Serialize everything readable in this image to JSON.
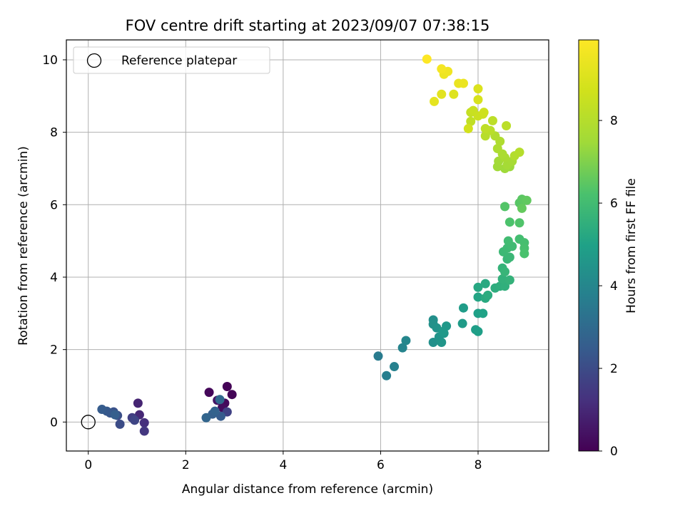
{
  "chart_data": {
    "type": "scatter",
    "title": "FOV centre drift starting at 2023/09/07 07:38:15",
    "xlabel": "Angular distance from reference (arcmin)",
    "ylabel": "Rotation from reference (arcmin)",
    "xlim": [
      -0.45,
      9.45
    ],
    "ylim": [
      -0.8,
      10.55
    ],
    "xticks": [
      "0",
      "2",
      "4",
      "6",
      "8"
    ],
    "yticks": [
      "0",
      "2",
      "4",
      "6",
      "8",
      "10"
    ],
    "grid": true,
    "legend": {
      "placement": "upper-left",
      "entries": [
        "Reference platepar"
      ]
    },
    "colorbar": {
      "label": "Hours from first FF file",
      "min": 0,
      "max": 9.95,
      "ticks": [
        "0",
        "2",
        "4",
        "6",
        "8"
      ],
      "colormap": "viridis"
    },
    "reference": {
      "x": 0,
      "y": 0
    },
    "points": [
      [
        2.85,
        0.98,
        0.05
      ],
      [
        2.95,
        0.76,
        0.1
      ],
      [
        2.48,
        0.82,
        0.15
      ],
      [
        2.8,
        0.52,
        0.2
      ],
      [
        2.75,
        0.4,
        0.3
      ],
      [
        2.65,
        0.6,
        0.5
      ],
      [
        2.85,
        0.28,
        1.7
      ],
      [
        2.72,
        0.16,
        2.5
      ],
      [
        2.55,
        0.22,
        2.6
      ],
      [
        2.6,
        0.3,
        2.7
      ],
      [
        2.42,
        0.12,
        2.8
      ],
      [
        2.7,
        0.62,
        2.9
      ],
      [
        1.02,
        0.52,
        0.9
      ],
      [
        1.05,
        0.2,
        1.0
      ],
      [
        1.15,
        -0.02,
        1.2
      ],
      [
        1.15,
        -0.25,
        1.4
      ],
      [
        0.9,
        0.12,
        1.6
      ],
      [
        0.95,
        0.05,
        1.8
      ],
      [
        0.65,
        -0.06,
        2.0
      ],
      [
        0.6,
        0.18,
        2.1
      ],
      [
        0.52,
        0.28,
        2.2
      ],
      [
        0.45,
        0.25,
        2.3
      ],
      [
        0.38,
        0.3,
        2.4
      ],
      [
        0.28,
        0.35,
        2.5
      ],
      [
        0.55,
        0.2,
        2.6
      ],
      [
        5.95,
        1.82,
        3.6
      ],
      [
        6.12,
        1.28,
        3.7
      ],
      [
        6.28,
        1.53,
        3.8
      ],
      [
        6.45,
        2.05,
        3.9
      ],
      [
        6.52,
        2.25,
        4.0
      ],
      [
        7.08,
        2.82,
        4.3
      ],
      [
        7.08,
        2.2,
        4.35
      ],
      [
        7.08,
        2.7,
        4.4
      ],
      [
        7.15,
        2.6,
        4.45
      ],
      [
        7.2,
        2.35,
        4.5
      ],
      [
        7.25,
        2.2,
        4.55
      ],
      [
        7.3,
        2.45,
        4.6
      ],
      [
        7.35,
        2.65,
        4.65
      ],
      [
        7.28,
        2.5,
        4.7
      ],
      [
        7.68,
        2.72,
        4.75
      ],
      [
        7.7,
        3.15,
        4.8
      ],
      [
        7.95,
        2.55,
        4.85
      ],
      [
        8.0,
        2.5,
        4.9
      ],
      [
        8.0,
        3.0,
        4.95
      ],
      [
        8.1,
        3.0,
        5.0
      ],
      [
        8.0,
        3.45,
        5.1
      ],
      [
        8.0,
        3.72,
        5.2
      ],
      [
        8.15,
        3.82,
        5.25
      ],
      [
        8.15,
        3.42,
        5.3
      ],
      [
        8.2,
        3.5,
        5.35
      ],
      [
        8.35,
        3.7,
        5.4
      ],
      [
        8.45,
        3.75,
        5.45
      ],
      [
        8.55,
        3.75,
        5.5
      ],
      [
        8.5,
        3.95,
        5.55
      ],
      [
        8.65,
        3.92,
        5.6
      ],
      [
        8.5,
        4.25,
        5.65
      ],
      [
        8.55,
        4.15,
        5.7
      ],
      [
        8.6,
        4.5,
        5.75
      ],
      [
        8.65,
        4.55,
        5.8
      ],
      [
        8.52,
        4.7,
        5.85
      ],
      [
        8.6,
        4.8,
        5.9
      ],
      [
        8.7,
        4.85,
        5.95
      ],
      [
        8.62,
        5.0,
        6.0
      ],
      [
        8.85,
        5.05,
        6.05
      ],
      [
        8.95,
        4.95,
        6.1
      ],
      [
        8.95,
        4.8,
        6.15
      ],
      [
        8.95,
        4.65,
        6.2
      ],
      [
        8.65,
        5.52,
        6.25
      ],
      [
        8.85,
        5.5,
        6.3
      ],
      [
        8.55,
        5.95,
        6.35
      ],
      [
        8.85,
        6.05,
        6.4
      ],
      [
        8.9,
        6.15,
        6.45
      ],
      [
        8.95,
        6.12,
        6.5
      ],
      [
        9.0,
        6.12,
        6.55
      ],
      [
        8.9,
        5.9,
        6.6
      ],
      [
        8.65,
        7.05,
        7.4
      ],
      [
        8.55,
        7.0,
        7.45
      ],
      [
        8.4,
        7.05,
        7.5
      ],
      [
        8.42,
        7.2,
        7.55
      ],
      [
        8.6,
        7.1,
        7.6
      ],
      [
        8.7,
        7.2,
        7.65
      ],
      [
        8.55,
        7.3,
        7.7
      ],
      [
        8.5,
        7.4,
        7.75
      ],
      [
        8.4,
        7.55,
        7.8
      ],
      [
        8.45,
        7.75,
        7.85
      ],
      [
        8.35,
        7.9,
        7.9
      ],
      [
        8.75,
        7.35,
        7.95
      ],
      [
        8.85,
        7.45,
        8.0
      ],
      [
        8.15,
        7.9,
        8.05
      ],
      [
        8.25,
        8.05,
        8.1
      ],
      [
        8.58,
        8.18,
        8.15
      ],
      [
        8.3,
        8.32,
        8.2
      ],
      [
        8.15,
        8.1,
        8.25
      ],
      [
        7.85,
        8.3,
        8.3
      ],
      [
        7.85,
        8.55,
        8.4
      ],
      [
        7.9,
        8.6,
        8.5
      ],
      [
        8.0,
        8.45,
        8.55
      ],
      [
        8.1,
        8.5,
        8.6
      ],
      [
        8.12,
        8.55,
        8.65
      ],
      [
        7.8,
        8.1,
        8.75
      ],
      [
        8.0,
        8.9,
        8.9
      ],
      [
        8.0,
        9.2,
        9.0
      ],
      [
        7.5,
        9.05,
        9.1
      ],
      [
        7.25,
        9.05,
        9.2
      ],
      [
        7.1,
        8.85,
        9.3
      ],
      [
        7.6,
        9.35,
        9.4
      ],
      [
        7.7,
        9.35,
        9.45
      ],
      [
        7.3,
        9.6,
        9.5
      ],
      [
        7.38,
        9.68,
        9.6
      ],
      [
        7.25,
        9.75,
        9.7
      ],
      [
        6.95,
        10.02,
        9.95
      ]
    ]
  }
}
